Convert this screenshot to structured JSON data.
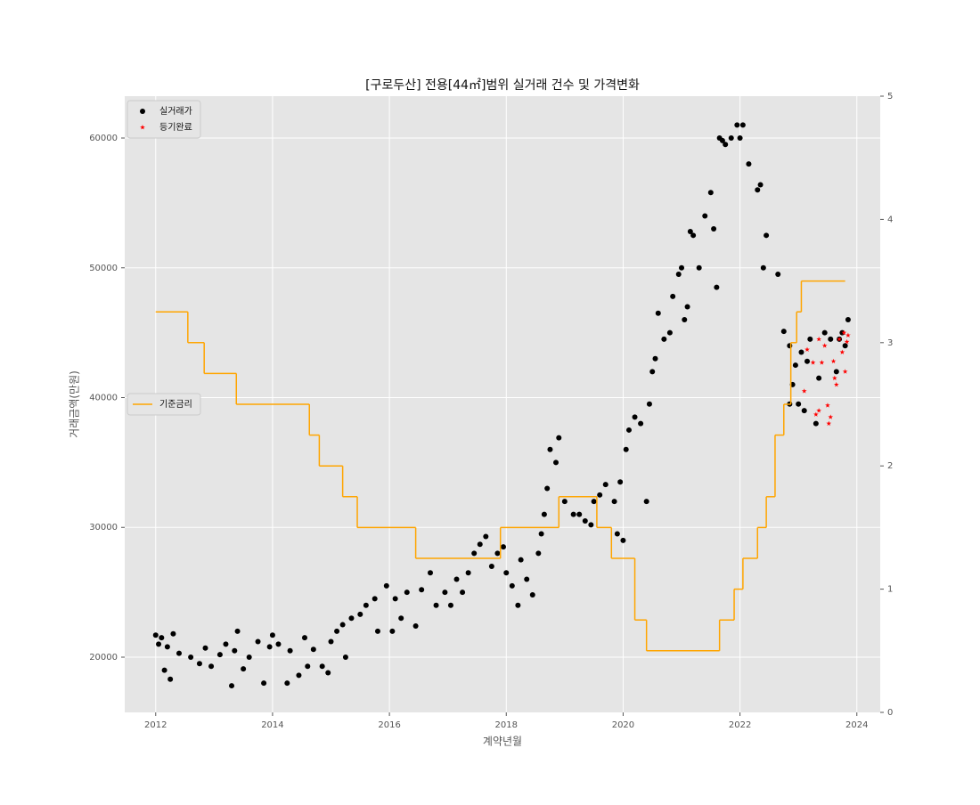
{
  "chart_data": {
    "type": "scatter",
    "title": "[구로두산] 전용[44㎡]범위 실거래 건수 및 가격변화",
    "xlabel": "계약년월",
    "ylabel": "거래금액(만원)",
    "xlim": [
      2011.47,
      2024.4
    ],
    "xticks": [
      2012,
      2014,
      2016,
      2018,
      2020,
      2022,
      2024
    ],
    "ylim": [
      15746,
      63225
    ],
    "yticks": [
      20000,
      30000,
      40000,
      50000,
      60000
    ],
    "y2lim": [
      0,
      5
    ],
    "y2ticks": [
      0,
      1,
      2,
      3,
      4,
      5
    ],
    "grid": true,
    "series": [
      {
        "name": "실거래가",
        "type": "scatter",
        "marker": "circle",
        "color": "#000000",
        "legend": "upper left",
        "x": [
          2012.0,
          2012.05,
          2012.1,
          2012.15,
          2012.2,
          2012.25,
          2012.3,
          2012.4,
          2012.6,
          2012.75,
          2012.85,
          2012.95,
          2013.1,
          2013.2,
          2013.3,
          2013.35,
          2013.4,
          2013.5,
          2013.6,
          2013.75,
          2013.85,
          2013.95,
          2014.0,
          2014.1,
          2014.25,
          2014.3,
          2014.45,
          2014.55,
          2014.6,
          2014.7,
          2014.85,
          2014.95,
          2015.0,
          2015.1,
          2015.2,
          2015.25,
          2015.35,
          2015.5,
          2015.6,
          2015.75,
          2015.8,
          2015.95,
          2016.05,
          2016.1,
          2016.2,
          2016.3,
          2016.45,
          2016.55,
          2016.7,
          2016.8,
          2016.95,
          2017.05,
          2017.15,
          2017.25,
          2017.35,
          2017.45,
          2017.55,
          2017.65,
          2017.75,
          2017.85,
          2017.95,
          2018.0,
          2018.1,
          2018.2,
          2018.25,
          2018.35,
          2018.45,
          2018.55,
          2018.6,
          2018.65,
          2018.7,
          2018.75,
          2018.85,
          2018.9,
          2019.0,
          2019.15,
          2019.25,
          2019.35,
          2019.45,
          2019.5,
          2019.6,
          2019.7,
          2019.85,
          2019.9,
          2019.95,
          2020.0,
          2020.05,
          2020.1,
          2020.2,
          2020.3,
          2020.4,
          2020.45,
          2020.5,
          2020.55,
          2020.6,
          2020.7,
          2020.8,
          2020.85,
          2020.95,
          2021.0,
          2021.05,
          2021.1,
          2021.15,
          2021.2,
          2021.3,
          2021.4,
          2021.5,
          2021.55,
          2021.6,
          2021.65,
          2021.7,
          2021.75,
          2021.85,
          2021.95,
          2022.0,
          2022.05,
          2022.15,
          2022.3,
          2022.35,
          2022.45,
          2022.4,
          2022.65,
          2022.75,
          2022.85,
          2022.9,
          2022.95,
          2023.0,
          2023.05,
          2023.1,
          2023.2,
          2023.3,
          2023.35,
          2023.45,
          2023.55,
          2023.65,
          2023.7,
          2023.75,
          2023.85,
          2023.8,
          2022.85,
          2023.15
        ],
        "values": [
          21700,
          21000,
          21500,
          19000,
          20800,
          18300,
          21800,
          20300,
          20000,
          19500,
          20700,
          19300,
          20200,
          21000,
          17800,
          20500,
          22000,
          19100,
          20000,
          21200,
          18000,
          20800,
          21700,
          21000,
          18000,
          20500,
          18600,
          21500,
          19300,
          20600,
          19300,
          18800,
          21200,
          22000,
          22500,
          20000,
          23000,
          23300,
          24000,
          24500,
          22000,
          25500,
          22000,
          24500,
          23000,
          25000,
          22400,
          25200,
          26500,
          24000,
          25000,
          24000,
          26000,
          25000,
          26500,
          28000,
          28700,
          29300,
          27000,
          28000,
          28500,
          26500,
          25500,
          24000,
          27500,
          26000,
          24800,
          28000,
          29500,
          31000,
          33000,
          36000,
          35000,
          36900,
          32000,
          31000,
          31000,
          30500,
          30200,
          32000,
          32500,
          33300,
          32000,
          29500,
          33500,
          29000,
          36000,
          37500,
          38500,
          38000,
          32000,
          39500,
          42000,
          43000,
          46500,
          44500,
          45000,
          47800,
          49500,
          50000,
          46000,
          47000,
          52800,
          52500,
          50000,
          54000,
          55800,
          53000,
          48500,
          60000,
          59800,
          59500,
          60000,
          61000,
          60000,
          61000,
          58000,
          56000,
          56400,
          52500,
          50000,
          49500,
          45100,
          44000,
          41000,
          42500,
          39500,
          43500,
          39000,
          44500,
          38000,
          41500,
          45000,
          44500,
          42000,
          44500,
          45000,
          46000,
          44000,
          39500,
          42800
        ]
      },
      {
        "name": "등기완료",
        "type": "scatter",
        "marker": "star",
        "color": "#ff0000",
        "legend": "upper left",
        "x": [
          2023.1,
          2023.15,
          2023.25,
          2023.3,
          2023.35,
          2023.4,
          2023.45,
          2023.5,
          2023.52,
          2023.55,
          2023.6,
          2023.62,
          2023.65,
          2023.7,
          2023.75,
          2023.8,
          2023.85,
          2023.78,
          2023.83,
          2023.35
        ],
        "values": [
          40500,
          43700,
          42700,
          38700,
          44500,
          42700,
          44000,
          39400,
          38000,
          38500,
          42800,
          41500,
          41000,
          44500,
          43500,
          42000,
          44800,
          45000,
          44300,
          39000
        ]
      },
      {
        "name": "기준금리",
        "type": "line",
        "step": "post",
        "axis": "y2",
        "color": "#ffa500",
        "legend": "center left",
        "x": [
          2012.0,
          2012.55,
          2012.83,
          2013.38,
          2014.63,
          2014.8,
          2015.2,
          2015.45,
          2016.45,
          2017.9,
          2018.9,
          2019.55,
          2019.8,
          2020.2,
          2020.4,
          2021.65,
          2021.9,
          2022.05,
          2022.3,
          2022.45,
          2022.6,
          2022.75,
          2022.87,
          2022.97,
          2023.05,
          2023.8
        ],
        "values": [
          3.25,
          3.0,
          2.75,
          2.5,
          2.25,
          2.0,
          1.75,
          1.5,
          1.25,
          1.5,
          1.75,
          1.5,
          1.25,
          0.75,
          0.5,
          0.75,
          1.0,
          1.25,
          1.5,
          1.75,
          2.25,
          2.5,
          3.0,
          3.25,
          3.5,
          3.5
        ]
      }
    ]
  }
}
